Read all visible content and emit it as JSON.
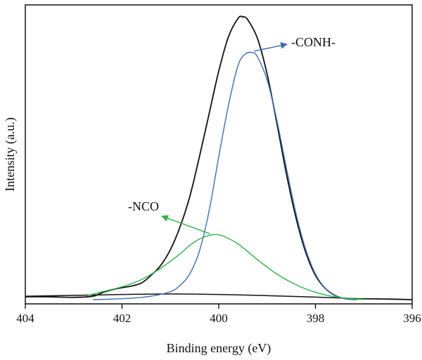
{
  "chart_data": {
    "type": "line",
    "title": "",
    "xlabel": "Binding energy (eV)",
    "ylabel": "Intensity (a.u.)",
    "xlim": [
      404,
      396
    ],
    "ylim": [
      0,
      1.0
    ],
    "x_reversed": true,
    "y_ticks_shown": false,
    "grid": false,
    "legend": "none",
    "xticks": [
      "404",
      "402",
      "400",
      "398",
      "396"
    ],
    "xtick_values": [
      404,
      402,
      400,
      398,
      396
    ],
    "series": [
      {
        "color": "#111111",
        "x": [
          404.0,
          403.5,
          403.0,
          402.6,
          402.4,
          402.2,
          402.0,
          401.8,
          401.6,
          401.4,
          401.2,
          401.0,
          400.8,
          400.6,
          400.4,
          400.2,
          400.0,
          399.8,
          399.6,
          399.5,
          399.4,
          399.2,
          399.0,
          398.8,
          398.6,
          398.4,
          398.2,
          398.0,
          397.8,
          397.6,
          397.4,
          397.2,
          397.0,
          396.5,
          396.0
        ],
        "y": [
          0.01,
          0.01,
          0.008,
          0.012,
          0.025,
          0.035,
          0.042,
          0.048,
          0.058,
          0.085,
          0.12,
          0.175,
          0.255,
          0.36,
          0.5,
          0.65,
          0.8,
          0.92,
          0.985,
          0.99,
          0.98,
          0.915,
          0.79,
          0.62,
          0.44,
          0.285,
          0.165,
          0.085,
          0.04,
          0.015,
          0.004,
          0.001,
          0.003,
          0.002,
          0.0
        ]
      },
      {
        "name": "-CONH-",
        "color": "#3d6db5",
        "x": [
          402.6,
          402.2,
          401.8,
          401.4,
          401.0,
          400.8,
          400.6,
          400.4,
          400.2,
          400.0,
          399.8,
          399.6,
          399.45,
          399.3,
          399.2,
          399.0,
          398.8,
          398.6,
          398.4,
          398.2,
          398.0,
          397.8,
          397.6,
          397.4,
          397.2
        ],
        "y": [
          0.0,
          0.002,
          0.005,
          0.012,
          0.028,
          0.05,
          0.09,
          0.17,
          0.31,
          0.5,
          0.68,
          0.82,
          0.86,
          0.865,
          0.85,
          0.77,
          0.63,
          0.46,
          0.3,
          0.175,
          0.09,
          0.04,
          0.014,
          0.004,
          0.0
        ]
      },
      {
        "name": "-NCO",
        "color": "#2fb34a",
        "x": [
          402.7,
          402.4,
          402.0,
          401.6,
          401.2,
          400.8,
          400.6,
          400.4,
          400.2,
          400.05,
          399.9,
          399.6,
          399.2,
          398.8,
          398.4,
          398.0,
          397.6,
          397.2,
          397.0
        ],
        "y": [
          0.015,
          0.028,
          0.045,
          0.07,
          0.11,
          0.16,
          0.19,
          0.212,
          0.225,
          0.228,
          0.222,
          0.195,
          0.14,
          0.09,
          0.052,
          0.026,
          0.01,
          0.003,
          0.001
        ]
      }
    ],
    "background": {
      "color": "#111111",
      "x": [
        404.0,
        403.0,
        402.0,
        401.0,
        400.0,
        399.0,
        398.0,
        397.2,
        397.0
      ],
      "y": [
        0.012,
        0.015,
        0.018,
        0.02,
        0.018,
        0.014,
        0.009,
        0.004,
        0.002
      ]
    },
    "annotations": [
      {
        "text": "-CONH-",
        "color": "#3d6db5",
        "point_x": 399.3,
        "point_y": 0.865
      },
      {
        "text": "-NCO",
        "color": "#2fb34a",
        "point_x": 400.15,
        "point_y": 0.228
      }
    ]
  }
}
